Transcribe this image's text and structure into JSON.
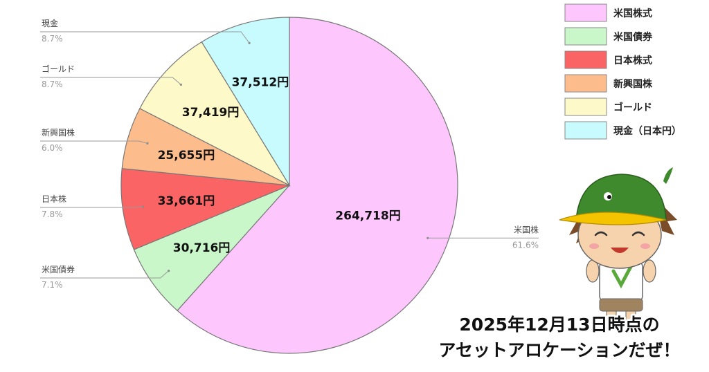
{
  "chart_data": {
    "type": "pie",
    "title": "",
    "unit": "円",
    "slices": [
      {
        "legend": "米国株式",
        "callout": "米国株",
        "value": 264718,
        "value_label": "264,718円",
        "percent_label": "61.6%",
        "color": "#fdc6fd"
      },
      {
        "legend": "米国債券",
        "callout": "米国債券",
        "value": 30716,
        "value_label": "30,716円",
        "percent_label": "7.1%",
        "color": "#c9f7c9"
      },
      {
        "legend": "日本株式",
        "callout": "日本株",
        "value": 33661,
        "value_label": "33,661円",
        "percent_label": "7.8%",
        "color": "#fb6464"
      },
      {
        "legend": "新興国株",
        "callout": "新興国株",
        "value": 25655,
        "value_label": "25,655円",
        "percent_label": "6.0%",
        "color": "#fcbc8c"
      },
      {
        "legend": "ゴールド",
        "callout": "ゴールド",
        "value": 37419,
        "value_label": "37,419円",
        "percent_label": "8.7%",
        "color": "#fdf9c8"
      },
      {
        "legend": "現金（日本円）",
        "callout": "現金",
        "value": 37512,
        "value_label": "37,512円",
        "percent_label": "8.7%",
        "color": "#c8fbfd"
      }
    ],
    "legend_position": "top-right",
    "start_angle": "12 o'clock",
    "direction": "clockwise"
  },
  "caption": {
    "line1": "2025年12月13日時点の",
    "line2": "アセットアロケーションだぜ！"
  },
  "mascot": {
    "icon": "mascot-duck-cap-character-icon",
    "cap_color": "#3f8a2c",
    "beak_color": "#f5c400"
  }
}
